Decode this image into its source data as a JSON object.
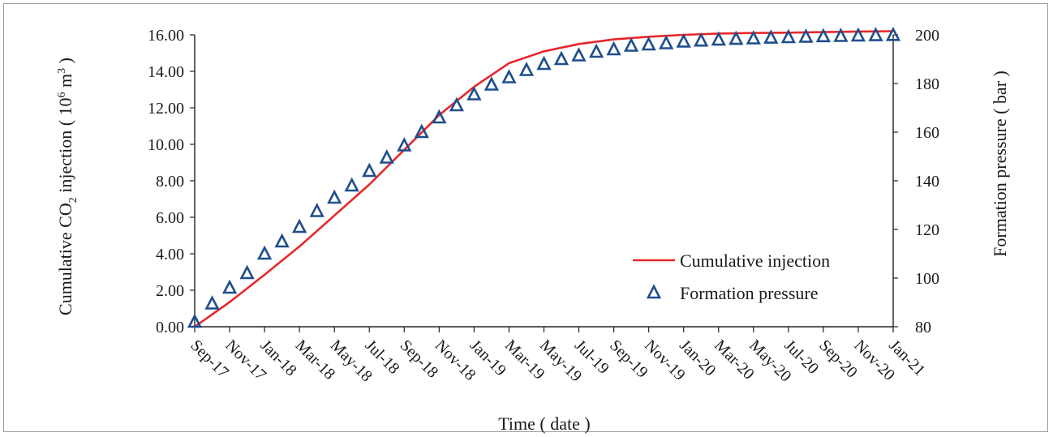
{
  "chart_data": {
    "type": "line",
    "xlabel": "Time ( date )",
    "ylabel_left": {
      "prefix": "Cumulative CO",
      "sub": "2",
      "middle": " injection ( 10",
      "sup1": "6",
      "unit": " m",
      "sup2": "3",
      "suffix": " )"
    },
    "ylabel_right": "Formation pressure ( bar )",
    "ylim_left": [
      0,
      16
    ],
    "ylim_right": [
      80,
      200
    ],
    "yticks_left": [
      "0.00",
      "2.00",
      "4.00",
      "6.00",
      "8.00",
      "10.00",
      "12.00",
      "14.00",
      "16.00"
    ],
    "yticks_right": [
      "80",
      "100",
      "120",
      "140",
      "160",
      "180",
      "200"
    ],
    "xticks": [
      "Sep-17",
      "Nov-17",
      "Jan-18",
      "Mar-18",
      "May-18",
      "Jul-18",
      "Sep-18",
      "Nov-18",
      "Jan-19",
      "Mar-19",
      "May-19",
      "Jul-19",
      "Sep-19",
      "Nov-19",
      "Jan-20",
      "Mar-20",
      "May-20",
      "Jul-20",
      "Sep-20",
      "Nov-20",
      "Jan-21"
    ],
    "grid": false,
    "legend_position": "bottom-right",
    "series": [
      {
        "name": "Cumulative injection",
        "axis": "left",
        "color": "#e8272b",
        "x": [
          "Sep-17",
          "Nov-17",
          "Jan-18",
          "Mar-18",
          "May-18",
          "Jul-18",
          "Sep-18",
          "Nov-18",
          "Jan-19",
          "Mar-19",
          "May-19",
          "Jul-19",
          "Sep-19",
          "Nov-19",
          "Jan-20",
          "Mar-20",
          "May-20",
          "Jul-20",
          "Sep-20",
          "Nov-20",
          "Jan-21"
        ],
        "values": [
          0.0,
          1.35,
          2.85,
          4.4,
          6.1,
          7.8,
          9.7,
          11.6,
          13.15,
          14.45,
          15.1,
          15.5,
          15.75,
          15.9,
          16.0,
          16.07,
          16.1,
          16.12,
          16.15,
          16.18,
          16.2
        ]
      },
      {
        "name": "Formation pressure",
        "axis": "right",
        "color": "#1f4e8c",
        "marker": "triangle-open",
        "points": [
          [
            "Sep-17",
            82.0
          ],
          [
            "Oct-17",
            89.5
          ],
          [
            "Nov-17",
            96.0
          ],
          [
            "Dec-17",
            102.0
          ],
          [
            "Jan-18",
            110.0
          ],
          [
            "Feb-18",
            115.0
          ],
          [
            "Mar-18",
            121.0
          ],
          [
            "Apr-18",
            127.5
          ],
          [
            "May-18",
            133.0
          ],
          [
            "Jun-18",
            138.0
          ],
          [
            "Jul-18",
            144.0
          ],
          [
            "Aug-18",
            149.5
          ],
          [
            "Sep-18",
            154.5
          ],
          [
            "Oct-18",
            160.0
          ],
          [
            "Nov-18",
            166.0
          ],
          [
            "Dec-18",
            171.0
          ],
          [
            "Jan-19",
            175.5
          ],
          [
            "Feb-19",
            179.5
          ],
          [
            "Mar-19",
            182.5
          ],
          [
            "Apr-19",
            185.5
          ],
          [
            "May-19",
            188.0
          ],
          [
            "Jun-19",
            190.0
          ],
          [
            "Jul-19",
            191.5
          ],
          [
            "Aug-19",
            193.0
          ],
          [
            "Sep-19",
            194.0
          ],
          [
            "Oct-19",
            195.5
          ],
          [
            "Nov-19",
            196.0
          ],
          [
            "Dec-19",
            196.5
          ],
          [
            "Jan-20",
            197.2
          ],
          [
            "Feb-20",
            197.6
          ],
          [
            "Mar-20",
            198.0
          ],
          [
            "Apr-20",
            198.3
          ],
          [
            "May-20",
            198.5
          ],
          [
            "Jun-20",
            198.8
          ],
          [
            "Jul-20",
            199.0
          ],
          [
            "Aug-20",
            199.2
          ],
          [
            "Sep-20",
            199.4
          ],
          [
            "Oct-20",
            199.5
          ],
          [
            "Nov-20",
            199.7
          ],
          [
            "Dec-20",
            199.8
          ],
          [
            "Jan-21",
            199.9
          ]
        ]
      }
    ]
  }
}
